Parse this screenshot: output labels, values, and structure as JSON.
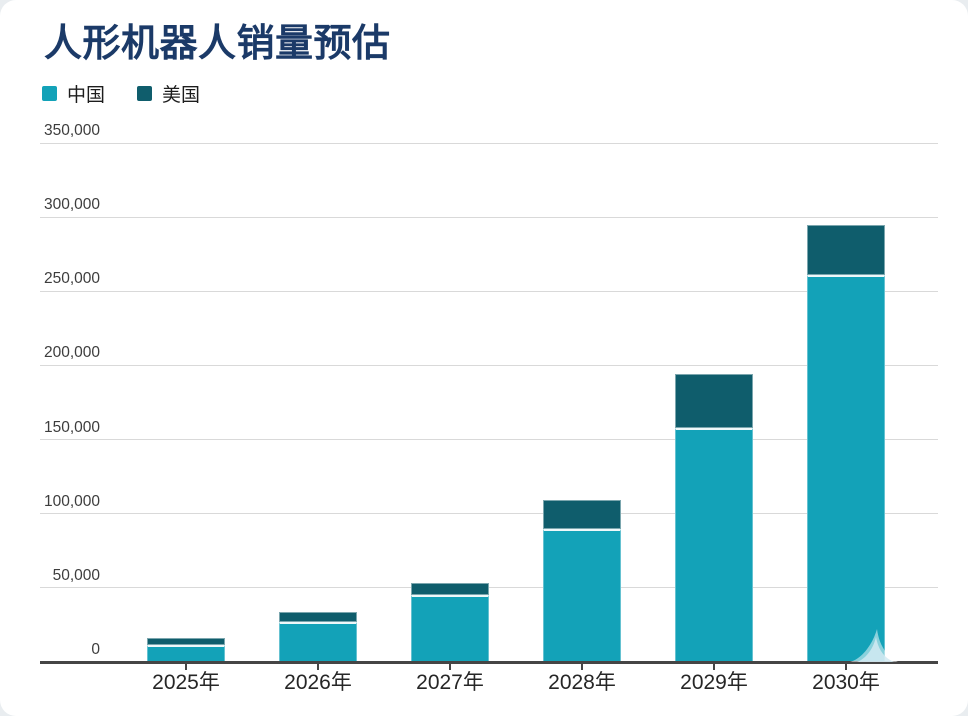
{
  "title": "人形机器人销量预估",
  "chart_data": {
    "type": "bar",
    "stacked": true,
    "title": "人形机器人销量预估",
    "categories": [
      "2025年",
      "2026年",
      "2027年",
      "2028年",
      "2029年",
      "2030年"
    ],
    "series": [
      {
        "name": "中国",
        "color": "#13a2b8",
        "values": [
          11500,
          27000,
          45000,
          90000,
          158000,
          261000
        ]
      },
      {
        "name": "美国",
        "color": "#0f5d6c",
        "values": [
          4500,
          7000,
          8000,
          19500,
          36500,
          34000
        ]
      }
    ],
    "xlabel": "",
    "ylabel": "",
    "ylim": [
      0,
      350000
    ],
    "ytick_step": 50000,
    "ytick_labels": [
      "0",
      "50,000",
      "100,000",
      "150,000",
      "200,000",
      "250,000",
      "300,000",
      "350,000"
    ],
    "grid": "horizontal",
    "legend_position": "top-left"
  },
  "colors": {
    "title": "#1b3a68",
    "china": "#13a2b8",
    "usa": "#0f5d6c",
    "grid": "#d9d9d9",
    "axis": "#454545",
    "y_label": "#3d3d3d",
    "x_label": "#262626",
    "background": "#ffffff",
    "separator": "#ffffff",
    "watermark": "#d2eaf2"
  }
}
